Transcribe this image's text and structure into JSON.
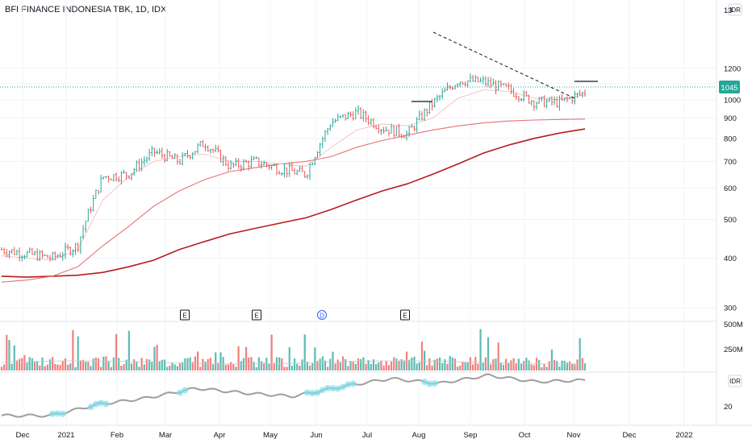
{
  "header": {
    "title": "BFI FINANCE INDONESIA TBK, 1D, IDX"
  },
  "price_axis": {
    "currency": "IDR",
    "top_partial": "13",
    "current_price": "1045",
    "current_price_color": "#26a69a"
  },
  "volume_axis": {
    "labels": [
      "500M",
      "250M"
    ]
  },
  "indicator_axis": {
    "currency": "IDR",
    "label": "20"
  },
  "event_markers": [
    {
      "type": "E",
      "month": "Mar"
    },
    {
      "type": "E",
      "month": "May"
    },
    {
      "type": "D",
      "month": "Jun"
    },
    {
      "type": "E",
      "month": "Aug"
    }
  ],
  "colors": {
    "up": "#26a69a",
    "down": "#ef5350",
    "ma_long": "#b71c1c",
    "ma_mid": "#e57373",
    "ma_short": "#f4b5b5",
    "indicator_line": "#9e9e9e",
    "indicator_glow": "#80deea",
    "grid": "#f0f3fa",
    "dotted": "#26a69a"
  },
  "chart_data": [
    {
      "type": "candlestick",
      "title": "BFI FINANCE INDONESIA TBK, 1D, IDX",
      "ylabel": "IDR",
      "y_scale": "log",
      "ylim": [
        280,
        1300
      ],
      "y_ticks": [
        300,
        400,
        500,
        600,
        700,
        800,
        900,
        1000,
        1100,
        1200
      ],
      "x_ticks": [
        "Dec",
        "2021",
        "Feb",
        "Mar",
        "Apr",
        "May",
        "Jun",
        "Jul",
        "Aug",
        "Sep",
        "Oct",
        "Nov",
        "Dec",
        "2022"
      ],
      "x": [
        "Nov-20",
        "Dec-20",
        "Dec-20",
        "Jan-21",
        "Jan-21",
        "Feb-21",
        "Feb-21",
        "Mar-21",
        "Mar-21",
        "Apr-21",
        "Apr-21",
        "May-21",
        "May-21",
        "Jun-21",
        "Jun-21",
        "Jul-21",
        "Jul-21",
        "Aug-21",
        "Aug-21",
        "Sep-21",
        "Sep-21",
        "Oct-21",
        "Oct-21",
        "Nov-21"
      ],
      "series": [
        {
          "values": [
            420,
            410,
            400,
            430,
            640,
            650,
            740,
            700,
            780,
            680,
            700,
            670,
            650,
            880,
            930,
            850,
            820,
            980,
            1120,
            1110,
            1060,
            990,
            985,
            1045
          ]
        },
        {
          "values": [
            360,
            358,
            360,
            362,
            368,
            380,
            395,
            420,
            440,
            460,
            475,
            490,
            505,
            530,
            560,
            590,
            615,
            650,
            690,
            735,
            770,
            800,
            825,
            845
          ]
        },
        {
          "values": [
            348,
            352,
            360,
            380,
            430,
            480,
            540,
            590,
            630,
            660,
            675,
            690,
            700,
            720,
            760,
            790,
            815,
            840,
            860,
            875,
            885,
            890,
            893,
            895
          ]
        },
        {
          "values": [
            405,
            400,
            395,
            420,
            560,
            640,
            700,
            720,
            730,
            700,
            700,
            690,
            680,
            760,
            840,
            870,
            860,
            900,
            1010,
            1060,
            1050,
            1010,
            1000,
            1030
          ]
        }
      ],
      "annotations": [
        "trendline from Aug high 1230 to ~1000 in late Oct",
        "horizontal breakout line ~1060"
      ]
    },
    {
      "type": "bar",
      "ylabel": "Volume",
      "y_ticks": [
        "250M",
        "500M"
      ],
      "ylim": [
        0,
        500000000
      ]
    },
    {
      "type": "line",
      "ylabel": "IDR",
      "y_ticks": [
        20
      ],
      "x": [
        "Nov-20",
        "Dec-20",
        "Jan-21",
        "Feb-21",
        "Mar-21",
        "Apr-21",
        "May-21",
        "Jun-21",
        "Jul-21",
        "Aug-21",
        "Sep-21",
        "Oct-21",
        "Nov-21"
      ],
      "values": [
        8,
        8,
        15,
        19,
        25,
        22,
        20,
        26,
        31,
        28,
        33,
        29,
        30
      ]
    }
  ]
}
